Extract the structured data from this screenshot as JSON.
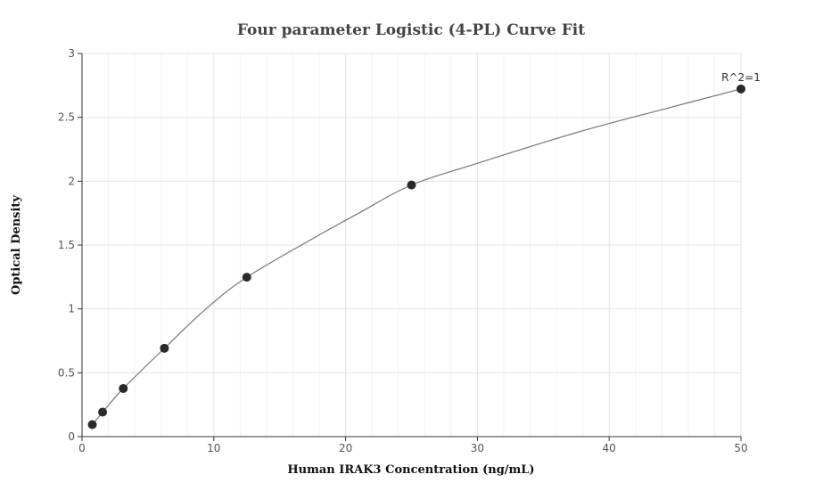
{
  "chart_data": {
    "type": "scatter",
    "title": "Four parameter Logistic (4-PL) Curve Fit",
    "xlabel": "Human IRAK3 Concentration (ng/mL)",
    "ylabel": "Optical Density",
    "xlim": [
      0,
      50
    ],
    "ylim": [
      0,
      3
    ],
    "xticks": [
      0,
      10,
      20,
      30,
      40,
      50
    ],
    "yticks": [
      0,
      0.5,
      1,
      1.5,
      2,
      2.5,
      3
    ],
    "grid": true,
    "series": [
      {
        "x": [
          0.78,
          1.56,
          3.13,
          6.25,
          12.5,
          25,
          50
        ],
        "y": [
          0.094,
          0.192,
          0.377,
          0.692,
          1.248,
          1.97,
          2.722
        ]
      }
    ],
    "fit_curve": {
      "x": [
        0.78,
        1.56,
        3.13,
        6.25,
        9.4,
        12.5,
        17.5,
        21,
        25,
        30,
        37.5,
        44,
        50
      ],
      "y": [
        0.094,
        0.192,
        0.377,
        0.692,
        1.0,
        1.248,
        1.55,
        1.75,
        1.97,
        2.14,
        2.38,
        2.56,
        2.722
      ]
    },
    "annotations": [
      {
        "text": "R^2=1",
        "x": 50,
        "y": 2.722
      }
    ],
    "colors": {
      "points": "#2a2a2a",
      "curve": "#777777"
    }
  }
}
